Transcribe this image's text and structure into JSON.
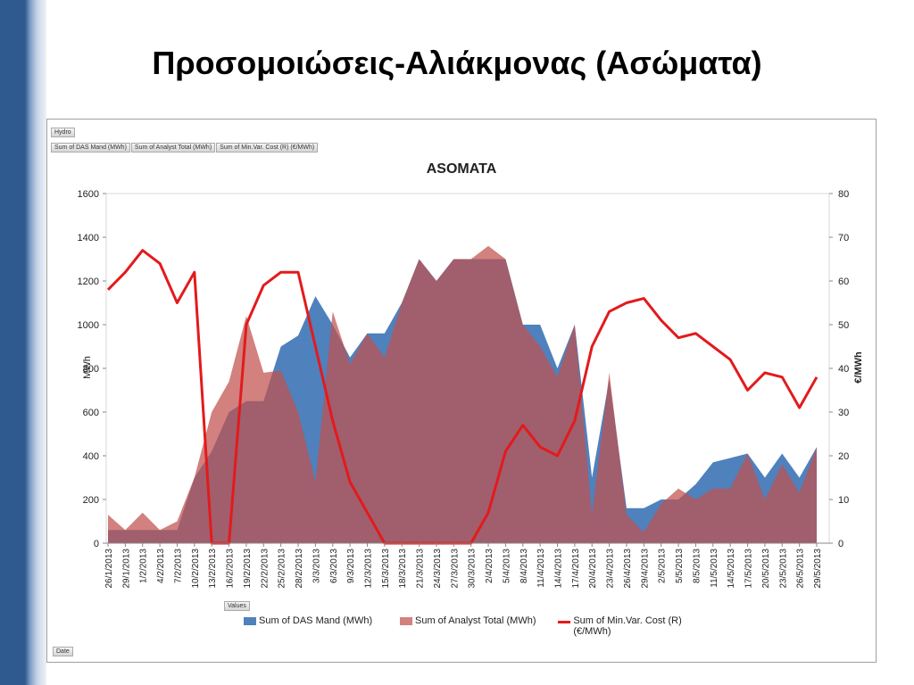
{
  "title": "Προσομοιώσεις-Αλιάκμονας (Ασώματα)",
  "filter_field": "Hydro",
  "values_field": "Values",
  "axis_field": "Date",
  "chart_data": {
    "type": "area-line",
    "title": "ASOMATA",
    "y_label": "MWh",
    "y2_label": "€/MWh",
    "categories": [
      "26/1/2013",
      "29/1/2013",
      "1/2/2013",
      "4/2/2013",
      "7/2/2013",
      "10/2/2013",
      "13/2/2013",
      "16/2/2013",
      "19/2/2013",
      "22/2/2013",
      "25/2/2013",
      "28/2/2013",
      "3/3/2013",
      "6/3/2013",
      "9/3/2013",
      "12/3/2013",
      "15/3/2013",
      "18/3/2013",
      "21/3/2013",
      "24/3/2013",
      "27/3/2013",
      "30/3/2013",
      "2/4/2013",
      "5/4/2013",
      "8/4/2013",
      "11/4/2013",
      "14/4/2013",
      "17/4/2013",
      "20/4/2013",
      "23/4/2013",
      "26/4/2013",
      "29/4/2013",
      "2/5/2013",
      "5/5/2013",
      "8/5/2013",
      "11/5/2013",
      "14/5/2013",
      "17/5/2013",
      "20/5/2013",
      "23/5/2013",
      "26/5/2013",
      "29/5/2013"
    ],
    "series": [
      {
        "name": "Sum of DAS Mand  (MWh)",
        "kind": "area",
        "color": "#4f81bd",
        "values": [
          60,
          60,
          60,
          60,
          60,
          300,
          420,
          600,
          650,
          650,
          900,
          950,
          1130,
          1000,
          850,
          960,
          960,
          1100,
          1300,
          1200,
          1300,
          1300,
          1300,
          1300,
          1000,
          1000,
          800,
          1000,
          300,
          750,
          160,
          160,
          200,
          200,
          270,
          370,
          390,
          410,
          300,
          410,
          300,
          440
        ]
      },
      {
        "name": "Sum of Analyst Total (MWh)",
        "kind": "area",
        "color": "#c0504d",
        "values": [
          130,
          60,
          140,
          60,
          100,
          300,
          600,
          740,
          1040,
          780,
          790,
          600,
          280,
          1060,
          820,
          960,
          850,
          1100,
          1300,
          1200,
          1300,
          1300,
          1360,
          1300,
          1000,
          900,
          760,
          1000,
          130,
          780,
          130,
          50,
          180,
          250,
          200,
          250,
          250,
          410,
          200,
          360,
          230,
          440
        ]
      },
      {
        "name": "Sum of Min.Var. Cost (R) (€/MWh)",
        "kind": "line",
        "axis": "y2",
        "color": "#e31a1c",
        "values": [
          58,
          62,
          67,
          64,
          55,
          62,
          0,
          0,
          50,
          59,
          62,
          62,
          45,
          28,
          14,
          7,
          0,
          0,
          0,
          0,
          0,
          0,
          7,
          21,
          27,
          22,
          20,
          28,
          45,
          53,
          55,
          56,
          51,
          47,
          48,
          45,
          42,
          35,
          39,
          38,
          31,
          38
        ]
      }
    ],
    "ylim": [
      0,
      1600
    ],
    "yticks": [
      0,
      200,
      400,
      600,
      800,
      1000,
      1200,
      1400,
      1600
    ],
    "y2lim": [
      0,
      80
    ],
    "y2ticks": [
      0,
      10,
      20,
      30,
      40,
      50,
      60,
      70,
      80
    ]
  }
}
